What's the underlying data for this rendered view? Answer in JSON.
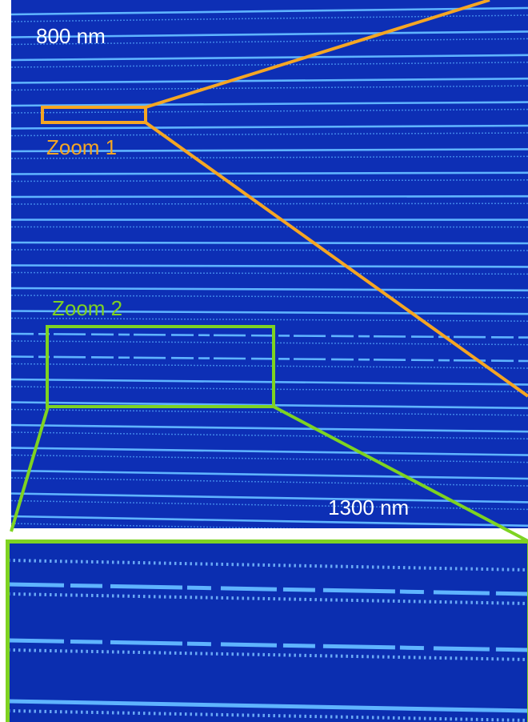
{
  "labels": {
    "scale_top": "800 nm",
    "zoom1": "Zoom 1",
    "zoom2": "Zoom 2",
    "scale_bottom": "1300 nm"
  }
}
